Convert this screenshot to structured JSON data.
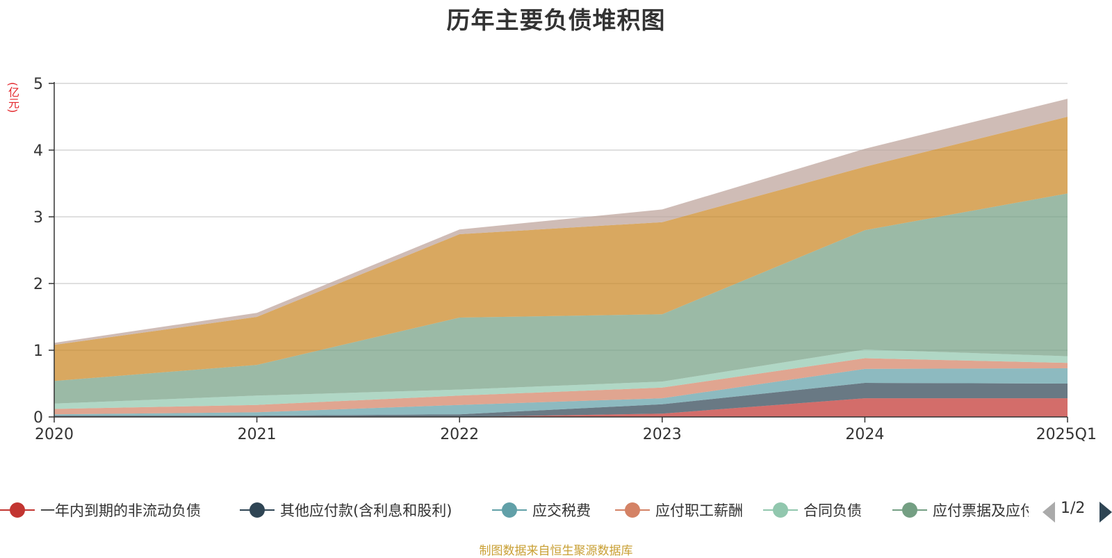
{
  "chart_data": {
    "type": "area",
    "stacked": true,
    "title": "历年主要负债堆积图",
    "unit_label": "(亿元)",
    "categories": [
      "2020",
      "2021",
      "2022",
      "2023",
      "2024",
      "2025Q1"
    ],
    "ylim": [
      0,
      5
    ],
    "y_ticks": [
      "0",
      "1",
      "2",
      "3",
      "4",
      "5"
    ],
    "grid": true,
    "series": [
      {
        "name": "一年内到期的非流动负债",
        "color": "#c23531",
        "values": [
          0.0,
          0.0,
          0.0,
          0.05,
          0.28,
          0.28
        ]
      },
      {
        "name": "其他应付款(含利息和股利)",
        "color": "#2f4554",
        "values": [
          0.02,
          0.02,
          0.04,
          0.14,
          0.23,
          0.22
        ]
      },
      {
        "name": "应交税费",
        "color": "#61a0a8",
        "values": [
          0.02,
          0.05,
          0.14,
          0.09,
          0.21,
          0.23
        ]
      },
      {
        "name": "应付职工薪酬",
        "color": "#d48265",
        "values": [
          0.08,
          0.11,
          0.14,
          0.16,
          0.16,
          0.08
        ]
      },
      {
        "name": "合同负债",
        "color": "#91c7ae",
        "values": [
          0.08,
          0.14,
          0.09,
          0.09,
          0.13,
          0.1
        ]
      },
      {
        "name": "应付票据及应付账款",
        "color": "#749f83",
        "values": [
          0.34,
          0.46,
          1.08,
          1.01,
          1.79,
          2.44
        ]
      },
      {
        "name": "",
        "color": "#ca8622",
        "values": [
          0.54,
          0.72,
          1.25,
          1.38,
          0.95,
          1.15
        ]
      },
      {
        "name": "",
        "color": "#bda29a",
        "values": [
          0.03,
          0.06,
          0.07,
          0.19,
          0.27,
          0.27
        ]
      }
    ]
  },
  "legend": {
    "visible_items": [
      {
        "label": "一年内到期的非流动负债",
        "color": "#c23531"
      },
      {
        "label": "其他应付款(含利息和股利)",
        "color": "#2f4554"
      },
      {
        "label": "应交税费",
        "color": "#61a0a8"
      },
      {
        "label": "应付职工薪酬",
        "color": "#d48265"
      },
      {
        "label": "合同负债",
        "color": "#91c7ae"
      },
      {
        "label": "应付票据及应付账款",
        "color": "#749f83"
      }
    ],
    "page_indicator": "1/2"
  },
  "source_note": "制图数据来自恒生聚源数据库"
}
